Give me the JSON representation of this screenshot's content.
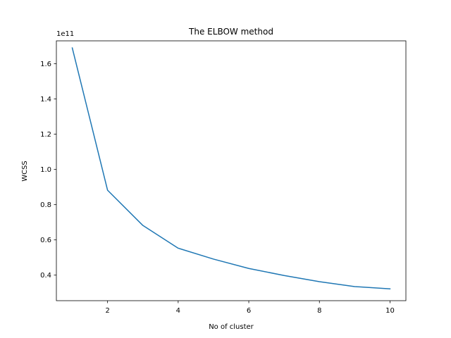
{
  "chart_data": {
    "type": "line",
    "title": "The ELBOW method",
    "xlabel": "No of cluster",
    "ylabel": "WCSS",
    "y_offset_label": "1e11",
    "xlim": [
      0.55,
      10.45
    ],
    "ylim": [
      0.255,
      1.73
    ],
    "x_ticks": [
      2,
      4,
      6,
      8,
      10
    ],
    "x_tick_labels": [
      "2",
      "4",
      "6",
      "8",
      "10"
    ],
    "y_ticks": [
      0.4,
      0.6,
      0.8,
      1.0,
      1.2,
      1.4,
      1.6
    ],
    "y_tick_labels": [
      "0.4",
      "0.6",
      "0.8",
      "1.0",
      "1.2",
      "1.4",
      "1.6"
    ],
    "grid": false,
    "line_color": "#1f77b4",
    "series": [
      {
        "x": [
          1,
          2,
          3,
          4,
          5,
          6,
          7,
          8,
          9,
          10
        ],
        "values": [
          1.69,
          0.882,
          0.682,
          0.553,
          0.491,
          0.438,
          0.398,
          0.363,
          0.335,
          0.322
        ]
      }
    ]
  }
}
